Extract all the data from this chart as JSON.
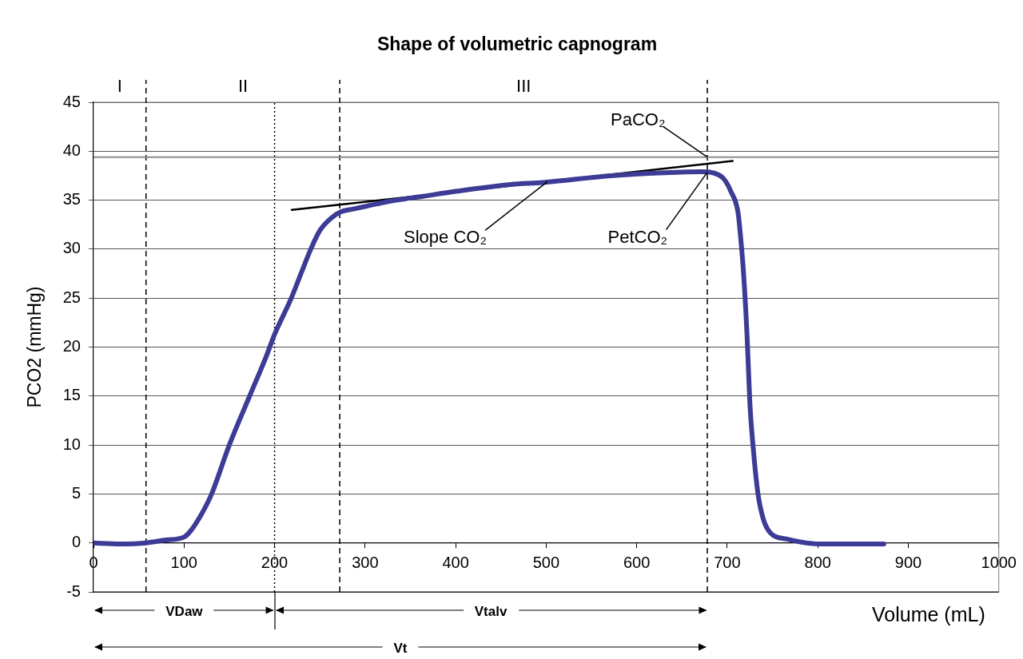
{
  "chart_data": {
    "type": "line",
    "title": "Shape of volumetric capnogram",
    "xlabel": "Volume (mL)",
    "ylabel": "PCO2 (mmHg)",
    "xlim": [
      0,
      1000
    ],
    "xticks": [
      0,
      100,
      200,
      300,
      400,
      500,
      600,
      700,
      800,
      900,
      1000
    ],
    "ylim": [
      -5,
      45
    ],
    "yticks": [
      -5,
      0,
      5,
      10,
      15,
      20,
      25,
      30,
      35,
      40,
      45
    ],
    "grid": "y",
    "series": [
      {
        "color": "#3c3c96",
        "x": [
          0,
          29,
          58,
          80,
          100,
          107,
          119,
          130,
          150,
          172,
          191,
          200,
          218,
          230,
          240,
          250,
          263,
          273,
          287,
          302,
          328,
          364,
          400,
          461,
          496,
          572,
          631,
          672,
          684,
          696,
          704,
          712,
          715,
          718,
          722,
          725,
          729,
          734,
          740,
          748,
          766,
          802,
          838,
          873
        ],
        "values": [
          0,
          -0.1,
          0,
          0.3,
          0.6,
          1.2,
          2.9,
          4.9,
          10,
          14.9,
          19.1,
          21.3,
          24.9,
          27.7,
          30,
          31.9,
          33.2,
          33.8,
          34.1,
          34.4,
          34.9,
          35.4,
          35.9,
          36.6,
          36.8,
          37.5,
          37.8,
          37.9,
          37.8,
          37.2,
          35.9,
          33.7,
          31,
          27.6,
          21,
          14.3,
          9.4,
          5,
          2.4,
          1,
          0.4,
          -0.1,
          -0.1,
          -0.1
        ]
      },
      {
        "name": "Slope CO₂",
        "color": "#000000",
        "x": [
          219,
          706
        ],
        "values": [
          34,
          39
        ]
      }
    ],
    "ref_lines": [
      {
        "axis": "x",
        "value": 58,
        "line_style": "dashed"
      },
      {
        "axis": "x",
        "value": 200,
        "line_style": "dotted"
      },
      {
        "axis": "x",
        "value": 272,
        "line_style": "dashed"
      },
      {
        "axis": "x",
        "value": 678,
        "line_style": "dashed",
        "label": "PetCO₂"
      },
      {
        "axis": "y",
        "value": 39.4,
        "color": "#8c8c8c",
        "label": "PaCO₂"
      }
    ],
    "annotations": [
      "I",
      "II",
      "III",
      "VDaw",
      "Vtalv",
      "Vt"
    ]
  }
}
